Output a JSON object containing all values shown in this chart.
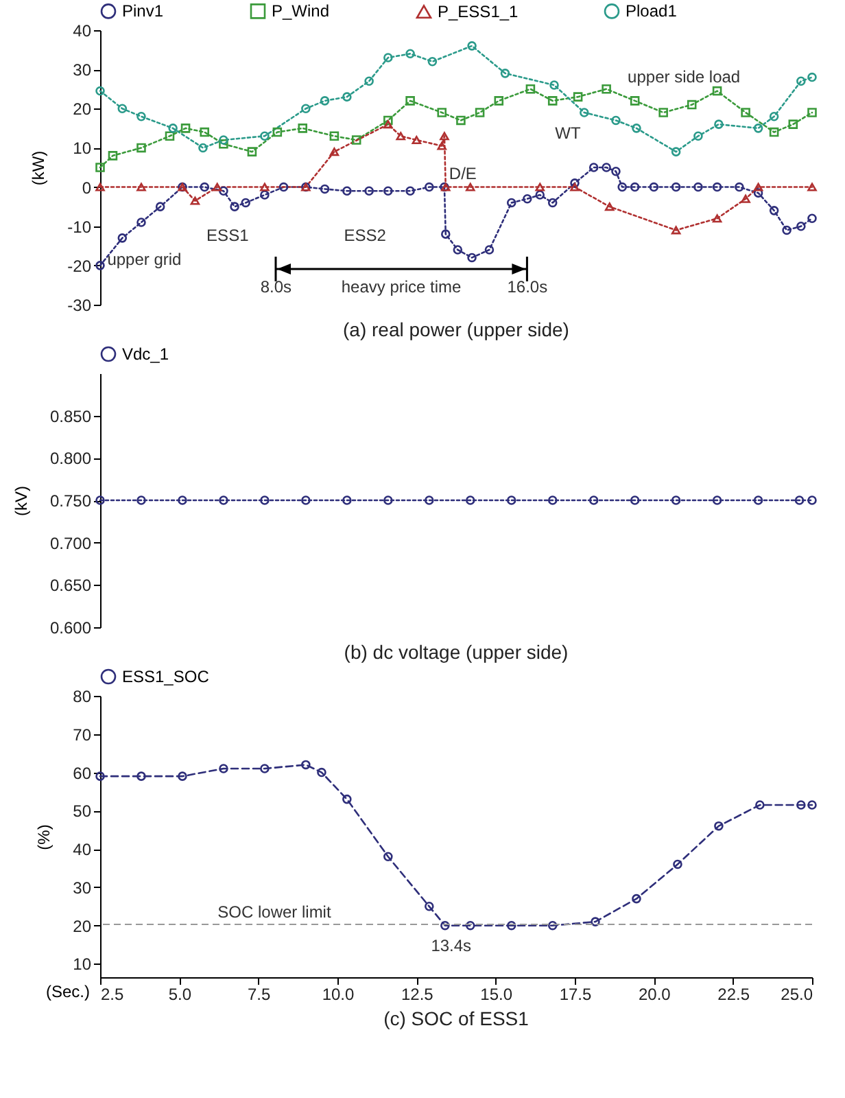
{
  "chart_data": [
    {
      "type": "line",
      "title": "(a) real power (upper side)",
      "ylabel": "(kW)",
      "xlim": [
        2.5,
        25
      ],
      "ylim": [
        -30,
        40
      ],
      "yticks": [
        -30,
        -20,
        -10,
        0,
        10,
        20,
        30,
        40
      ],
      "tick_labels": "y",
      "legend": "top",
      "line_style": "dotted",
      "series": [
        {
          "name": "Pinv1",
          "color": "#2e2e7a",
          "marker": "circle",
          "x": [
            2.5,
            3.2,
            3.8,
            4.4,
            5.1,
            5.8,
            6.4,
            6.75,
            7.1,
            7.7,
            8.3,
            9.0,
            9.6,
            10.3,
            11.0,
            11.6,
            12.3,
            12.9,
            13.38,
            13.42,
            13.8,
            14.25,
            14.8,
            15.5,
            16.0,
            16.4,
            16.8,
            17.5,
            18.1,
            18.5,
            18.8,
            19.0,
            19.4,
            20.0,
            20.7,
            21.4,
            22.0,
            22.7,
            23.3,
            23.8,
            24.2,
            24.65,
            25
          ],
          "values": [
            -20,
            -13,
            -9,
            -5,
            0,
            0,
            -1,
            -5,
            -4,
            -2,
            0,
            0,
            -0.5,
            -1,
            -1,
            -1,
            -1,
            0,
            0,
            -12,
            -16,
            -18,
            -16,
            -4,
            -3,
            -2,
            -4,
            1,
            5,
            5,
            4,
            0,
            0,
            0,
            0,
            0,
            0,
            0,
            -1.5,
            -6,
            -11,
            -10,
            -8
          ]
        },
        {
          "name": "P_Wind",
          "color": "#3a9a3a",
          "marker": "square",
          "x": [
            2.5,
            2.9,
            3.8,
            4.7,
            5.2,
            5.8,
            6.4,
            7.3,
            8.1,
            8.9,
            9.9,
            10.6,
            11.6,
            12.3,
            13.3,
            13.9,
            14.5,
            15.1,
            16.1,
            16.8,
            17.6,
            18.5,
            19.4,
            20.3,
            21.2,
            22.0,
            22.9,
            23.8,
            24.4,
            25
          ],
          "values": [
            5,
            8,
            10,
            13,
            15,
            14,
            11,
            9,
            14,
            15,
            13,
            12,
            17,
            22,
            19,
            17,
            19,
            22,
            25,
            22,
            23,
            25,
            22,
            19,
            21,
            24.5,
            19,
            14,
            16,
            19
          ]
        },
        {
          "name": "P_ESS1_1",
          "color": "#b03030",
          "marker": "triangle",
          "x": [
            2.5,
            3.8,
            5.1,
            5.5,
            6.2,
            7.7,
            9.0,
            9.9,
            11.6,
            12.0,
            12.5,
            13.3,
            13.38,
            13.42,
            14.2,
            16.4,
            17.5,
            18.6,
            20.7,
            22.0,
            22.9,
            23.3,
            25
          ],
          "values": [
            0,
            0,
            0,
            -3.5,
            0,
            0,
            0,
            9,
            16,
            13,
            12,
            10.5,
            13,
            0,
            0,
            0,
            0,
            -5,
            -11,
            -8,
            -3,
            0,
            0
          ]
        },
        {
          "name": "Pload1",
          "color": "#2a9a8a",
          "marker": "circle",
          "x": [
            2.5,
            3.2,
            3.8,
            4.8,
            5.75,
            6.4,
            7.7,
            9.0,
            9.6,
            10.3,
            11.0,
            11.6,
            12.3,
            13.0,
            14.25,
            15.3,
            16.85,
            17.8,
            18.8,
            19.45,
            20.7,
            21.4,
            22.05,
            23.3,
            23.8,
            24.65,
            25
          ],
          "values": [
            24.5,
            20,
            18,
            15,
            10,
            12,
            13,
            20,
            22,
            23,
            27,
            33,
            34,
            32,
            36,
            29,
            26,
            19,
            17,
            15,
            9,
            13,
            16,
            15,
            18,
            27,
            28
          ]
        }
      ],
      "annotations": [
        "upper side load",
        "WT",
        {
          "text": "D/E",
          "x": 13.4,
          "y": 0
        },
        "ESS1",
        "ESS2",
        "upper grid",
        "8.0s",
        "16.0s",
        "heavy price time"
      ]
    },
    {
      "type": "line",
      "title": "(b) dc voltage (upper side)",
      "ylabel": "(kV)",
      "xlim": [
        2.5,
        25
      ],
      "ylim": [
        0.6,
        0.9
      ],
      "yticks": [
        {
          "value": 0.6,
          "label": "0.600"
        },
        {
          "value": 0.65,
          "label": "0.650"
        },
        {
          "value": 0.7,
          "label": "0.700"
        },
        {
          "value": 0.75,
          "label": "0.750"
        },
        {
          "value": 0.8,
          "label": "0.800"
        },
        {
          "value": 0.85,
          "label": "0.850"
        }
      ],
      "tick_labels": "y",
      "legend": "top",
      "line_style": "dotted",
      "series": [
        {
          "name": "Vdc_1",
          "color": "#2e2e7a",
          "marker": "circle",
          "x": [
            2.5,
            3.8,
            5.1,
            6.4,
            7.7,
            9.0,
            10.3,
            11.6,
            12.9,
            14.2,
            15.5,
            16.8,
            18.1,
            19.4,
            20.7,
            22.0,
            23.3,
            24.6,
            25
          ],
          "values": [
            0.75,
            0.75,
            0.75,
            0.75,
            0.75,
            0.75,
            0.75,
            0.75,
            0.75,
            0.75,
            0.75,
            0.75,
            0.75,
            0.75,
            0.75,
            0.75,
            0.75,
            0.75,
            0.75
          ]
        }
      ]
    },
    {
      "type": "line",
      "title": "(c) SOC of ESS1",
      "xlabel": "(Sec.)",
      "ylabel": "(%)",
      "xlim": [
        2.5,
        25
      ],
      "ylim": [
        6.5,
        80
      ],
      "xticks": [
        2.5,
        {
          "value": 5,
          "label": "5.0"
        },
        7.5,
        {
          "value": 10,
          "label": "10.0"
        },
        12.5,
        {
          "value": 15,
          "label": "15.0"
        },
        17.5,
        {
          "value": 20,
          "label": "20.0"
        },
        22.5,
        {
          "value": 25,
          "label": "25.0"
        }
      ],
      "yticks": [
        10,
        20,
        30,
        40,
        50,
        60,
        70,
        80
      ],
      "legend": "top",
      "line_style": "dashed",
      "series": [
        {
          "name": "ESS1_SOC",
          "color": "#2e2e7a",
          "marker": "circle",
          "x": [
            2.5,
            3.8,
            5.1,
            6.4,
            7.7,
            9.0,
            9.5,
            10.3,
            11.6,
            12.9,
            13.4,
            14.2,
            15.5,
            16.8,
            18.15,
            19.45,
            20.75,
            22.05,
            23.35,
            24.65,
            25
          ],
          "values": [
            59,
            59,
            59,
            61,
            61,
            62,
            60,
            53,
            38,
            25,
            20,
            20,
            20,
            20,
            21,
            27,
            36,
            46,
            51.5,
            51.5,
            51.5
          ]
        }
      ],
      "ref_lines": [
        {
          "axis": "y",
          "value": 20.3,
          "label": "SOC lower limit",
          "color": "#999999",
          "line_style": "dashed"
        }
      ],
      "annotations": [
        "13.4s"
      ]
    }
  ]
}
